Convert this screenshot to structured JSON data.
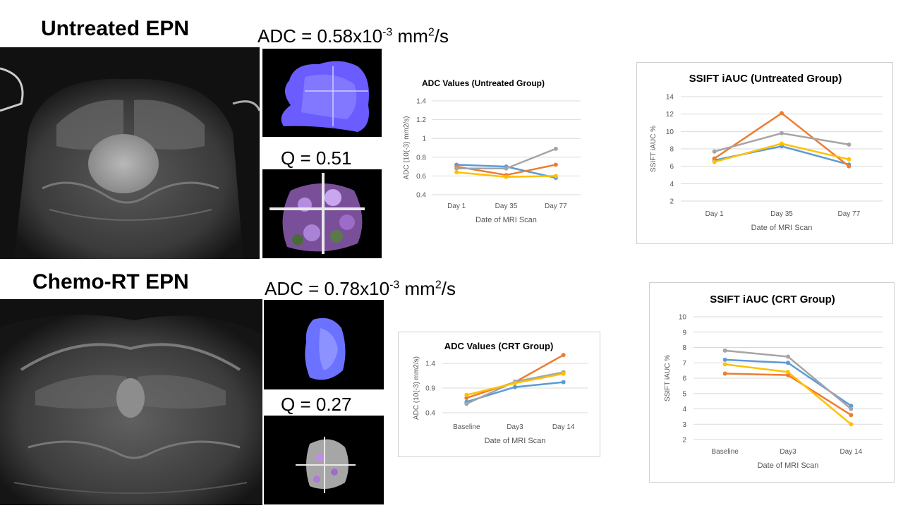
{
  "untreated": {
    "heading": "Untreated EPN",
    "adc_prefix": "ADC = 0.58x10",
    "adc_exp": "-3",
    "adc_unit_a": " mm",
    "adc_unit_sup": "2",
    "adc_unit_b": "/s",
    "q_label": "Q = 0.51"
  },
  "crt": {
    "heading": "Chemo-RT EPN",
    "adc_prefix": "ADC = 0.78x10",
    "adc_exp": "-3",
    "adc_unit_a": " mm",
    "adc_unit_sup": "2",
    "adc_unit_b": "/s",
    "q_label": "Q = 0.27"
  },
  "colors": {
    "blue": "#5b9bd5",
    "orange": "#ed7d31",
    "gray": "#a5a5a5",
    "yellow": "#ffc000",
    "grid": "#d9d9d9"
  },
  "chart_data": [
    {
      "id": "adc_untreated",
      "type": "line",
      "title": "ADC Values (Untreated Group)",
      "xlabel": "Date of MRI Scan",
      "ylabel": "ADC (10(-3) mm2/s)",
      "categories": [
        "Day 1",
        "Day  35",
        "Day 77"
      ],
      "ylim": [
        0.4,
        1.4
      ],
      "yticks": [
        "0.4",
        "0.6",
        "0.8",
        "1",
        "1.2",
        "1.4"
      ],
      "ytick_values": [
        0.4,
        0.6,
        0.8,
        1.0,
        1.2,
        1.4
      ],
      "series": [
        {
          "name": "blue",
          "color": "#5b9bd5",
          "values": [
            0.72,
            0.7,
            0.58
          ]
        },
        {
          "name": "orange",
          "color": "#ed7d31",
          "values": [
            0.7,
            0.61,
            0.72
          ]
        },
        {
          "name": "gray",
          "color": "#a5a5a5",
          "values": [
            0.68,
            0.68,
            0.89
          ]
        },
        {
          "name": "yellow",
          "color": "#ffc000",
          "values": [
            0.64,
            0.59,
            0.6
          ]
        }
      ]
    },
    {
      "id": "ssift_untreated",
      "type": "line",
      "title": "SSIFT iAUC (Untreated Group)",
      "xlabel": "Date of MRI Scan",
      "ylabel": "SSIFT iAUC %",
      "categories": [
        "Day 1",
        "Day  35",
        "Day 77"
      ],
      "ylim": [
        2,
        14
      ],
      "yticks": [
        "2",
        "4",
        "6",
        "8",
        "10",
        "12",
        "14"
      ],
      "ytick_values": [
        2,
        4,
        6,
        8,
        10,
        12,
        14
      ],
      "series": [
        {
          "name": "blue",
          "color": "#5b9bd5",
          "values": [
            6.7,
            8.3,
            6.2
          ]
        },
        {
          "name": "orange",
          "color": "#ed7d31",
          "values": [
            6.9,
            12.1,
            6.0
          ]
        },
        {
          "name": "gray",
          "color": "#a5a5a5",
          "values": [
            7.7,
            9.8,
            8.5
          ]
        },
        {
          "name": "yellow",
          "color": "#ffc000",
          "values": [
            6.5,
            8.6,
            6.8
          ]
        }
      ]
    },
    {
      "id": "adc_crt",
      "type": "line",
      "title": "ADC Values (CRT Group)",
      "xlabel": "Date of MRI Scan",
      "ylabel": "ADC (10(-3) mm2/s)",
      "categories": [
        "Baseline",
        "Day3",
        "Day 14"
      ],
      "ylim": [
        0.4,
        1.4
      ],
      "yticks": [
        "0.4",
        "0.9",
        "1.4"
      ],
      "ytick_values": [
        0.4,
        0.9,
        1.4
      ],
      "series": [
        {
          "name": "blue",
          "color": "#5b9bd5",
          "values": [
            0.62,
            0.92,
            1.02
          ]
        },
        {
          "name": "orange",
          "color": "#ed7d31",
          "values": [
            0.7,
            1.02,
            1.57
          ]
        },
        {
          "name": "gray",
          "color": "#a5a5a5",
          "values": [
            0.58,
            1.03,
            1.22
          ]
        },
        {
          "name": "yellow",
          "color": "#ffc000",
          "values": [
            0.76,
            1.0,
            1.19
          ]
        }
      ]
    },
    {
      "id": "ssift_crt",
      "type": "line",
      "title": "SSIFT iAUC (CRT Group)",
      "xlabel": "Date of MRI Scan",
      "ylabel": "SSIFT iAUC %",
      "categories": [
        "Baseline",
        "Day3",
        "Day 14"
      ],
      "ylim": [
        2,
        10
      ],
      "yticks": [
        "2",
        "3",
        "4",
        "5",
        "6",
        "7",
        "8",
        "9",
        "10"
      ],
      "ytick_values": [
        2,
        3,
        4,
        5,
        6,
        7,
        8,
        9,
        10
      ],
      "series": [
        {
          "name": "blue",
          "color": "#5b9bd5",
          "values": [
            7.2,
            7.0,
            4.2
          ]
        },
        {
          "name": "orange",
          "color": "#ed7d31",
          "values": [
            6.3,
            6.2,
            3.6
          ]
        },
        {
          "name": "gray",
          "color": "#a5a5a5",
          "values": [
            7.8,
            7.4,
            4.0
          ]
        },
        {
          "name": "yellow",
          "color": "#ffc000",
          "values": [
            6.9,
            6.4,
            3.0
          ]
        }
      ]
    }
  ]
}
